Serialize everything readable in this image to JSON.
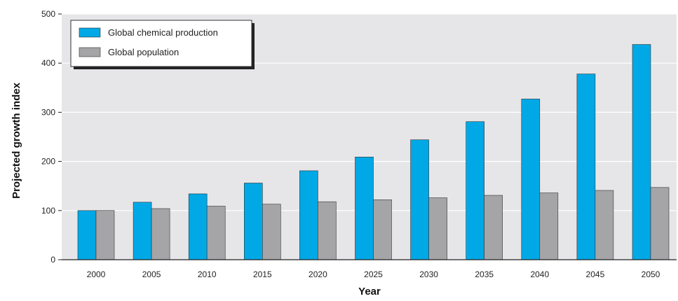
{
  "chart_data": {
    "type": "bar",
    "title": "",
    "xlabel": "Year",
    "ylabel": "Projected growth index",
    "categories": [
      "2000",
      "2005",
      "2010",
      "2015",
      "2020",
      "2025",
      "2030",
      "2035",
      "2040",
      "2045",
      "2050"
    ],
    "series": [
      {
        "name": "Global chemical production",
        "values": [
          100,
          117,
          134,
          156,
          181,
          209,
          244,
          281,
          327,
          378,
          438
        ],
        "color": "#00a8e6"
      },
      {
        "name": "Global population",
        "values": [
          100,
          104,
          109,
          113,
          118,
          122,
          126,
          131,
          136,
          141,
          147
        ],
        "color": "#a5a5a7"
      }
    ],
    "ylim": [
      0,
      500
    ],
    "yticks": [
      0,
      100,
      200,
      300,
      400,
      500
    ],
    "grid": true,
    "legend_position": "top-left",
    "plot_background": "#e6e6e8"
  }
}
